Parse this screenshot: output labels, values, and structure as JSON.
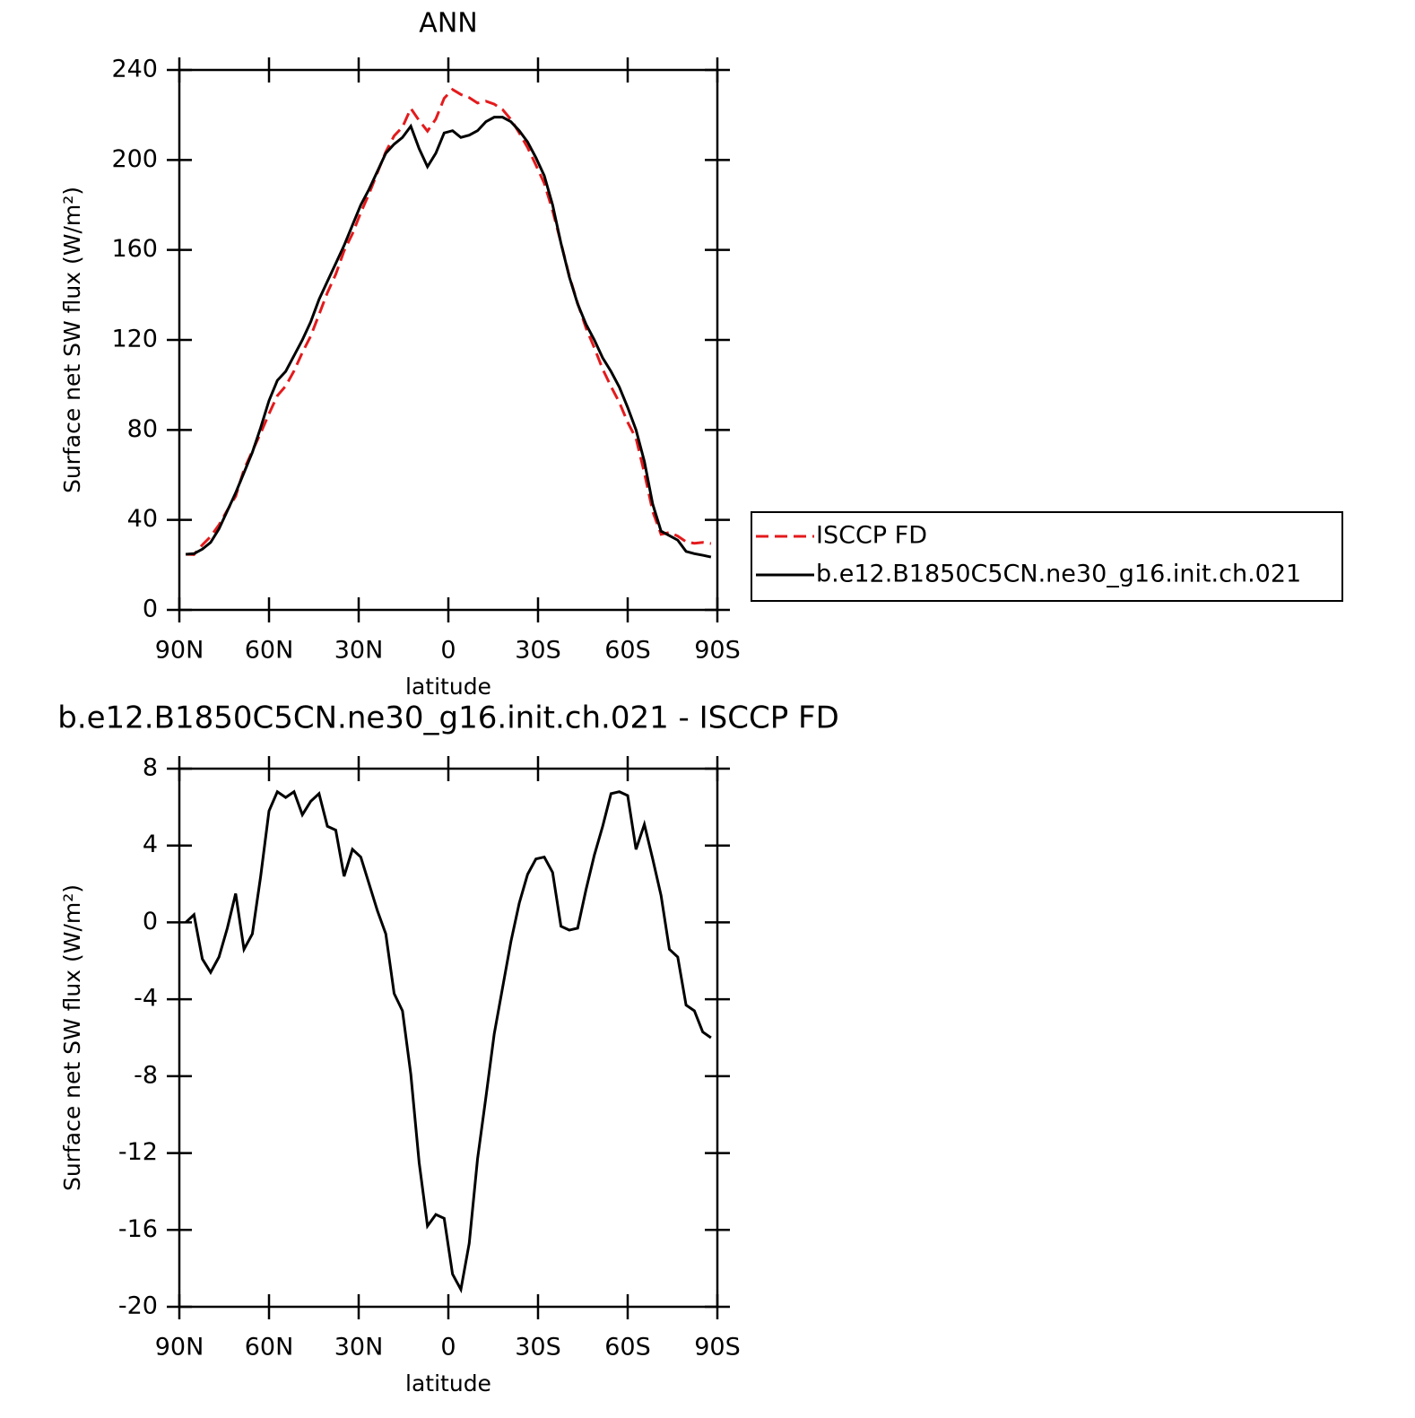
{
  "chart_data": [
    {
      "type": "line",
      "title": "ANN",
      "xlabel": "latitude",
      "ylabel": "Surface net SW flux (W/m²)",
      "x": [
        87.86,
        85.1,
        82.31,
        79.53,
        76.74,
        73.95,
        71.16,
        68.37,
        65.58,
        62.79,
        60,
        57.21,
        54.42,
        51.63,
        48.84,
        46.05,
        43.26,
        40.47,
        37.67,
        34.88,
        32.09,
        29.3,
        26.51,
        23.72,
        20.93,
        18.14,
        15.35,
        12.56,
        9.77,
        6.98,
        4.19,
        1.4,
        -1.4,
        -4.19,
        -6.98,
        -9.77,
        -12.56,
        -15.35,
        -18.14,
        -20.93,
        -23.72,
        -26.51,
        -29.3,
        -32.09,
        -34.88,
        -37.67,
        -40.47,
        -43.26,
        -46.05,
        -48.84,
        -51.63,
        -54.42,
        -57.21,
        -60,
        -62.79,
        -65.58,
        -68.37,
        -71.16,
        -73.95,
        -76.74,
        -79.53,
        -82.31,
        -85.1,
        -87.86
      ],
      "series": [
        {
          "name": "ISCCP FD",
          "color": "#e41a1c",
          "style": "dashed",
          "values": [
            24.7,
            24.6,
            28.9,
            32.6,
            37.8,
            44.3,
            50.5,
            62.4,
            70.6,
            78.6,
            87.2,
            95.2,
            99.5,
            106.2,
            114.4,
            121.7,
            131.3,
            141,
            149.2,
            159.6,
            167.2,
            176.6,
            185,
            194.4,
            203.6,
            210.7,
            214.6,
            222.9,
            217.5,
            212.8,
            218.2,
            227.4,
            231.3,
            229.1,
            227.7,
            225.3,
            226.1,
            224.8,
            222.4,
            218,
            212,
            205.5,
            197.7,
            189.6,
            177.4,
            163.2,
            148.4,
            136.3,
            125.3,
            116.5,
            107,
            99.3,
            92.2,
            83.4,
            76.2,
            60.9,
            43.7,
            33.6,
            34.4,
            32.8,
            30.3,
            29.6,
            30,
            29.5
          ]
        },
        {
          "name": "b.e12.B1850C5CN.ne30_g16.init.ch.021",
          "color": "#000000",
          "style": "solid",
          "values": [
            24.7,
            25,
            27,
            30,
            36,
            44,
            52,
            61,
            70,
            81,
            93,
            102,
            106,
            113,
            120,
            128,
            138,
            146,
            154,
            162,
            171,
            180,
            187,
            195,
            203,
            207,
            210,
            215,
            205,
            197,
            203,
            212,
            213,
            210,
            211,
            213,
            217,
            219,
            219,
            217,
            213,
            208,
            201,
            193,
            180,
            163,
            148,
            136,
            127,
            120,
            112,
            106,
            99,
            90,
            80,
            66,
            47,
            35,
            33,
            31,
            26,
            25,
            24.3,
            23.5
          ]
        }
      ],
      "xlim": [
        90,
        -90
      ],
      "xticks": [
        {
          "value": 90,
          "label": "90N"
        },
        {
          "value": 60,
          "label": "60N"
        },
        {
          "value": 30,
          "label": "30N"
        },
        0,
        {
          "value": -30,
          "label": "30S"
        },
        {
          "value": -60,
          "label": "60S"
        },
        {
          "value": -90,
          "label": "90S"
        }
      ],
      "ylim": [
        0,
        240
      ],
      "yticks": [
        0,
        40,
        80,
        120,
        160,
        200,
        240
      ],
      "legend": "right"
    },
    {
      "type": "line",
      "title": "b.e12.B1850C5CN.ne30_g16.init.ch.021 - ISCCP FD",
      "xlabel": "latitude",
      "ylabel": "Surface net SW flux (W/m²)",
      "x": [
        87.86,
        85.1,
        82.31,
        79.53,
        76.74,
        73.95,
        71.16,
        68.37,
        65.58,
        62.79,
        60,
        57.21,
        54.42,
        51.63,
        48.84,
        46.05,
        43.26,
        40.47,
        37.67,
        34.88,
        32.09,
        29.3,
        26.51,
        23.72,
        20.93,
        18.14,
        15.35,
        12.56,
        9.77,
        6.98,
        4.19,
        1.4,
        -1.4,
        -4.19,
        -6.98,
        -9.77,
        -12.56,
        -15.35,
        -18.14,
        -20.93,
        -23.72,
        -26.51,
        -29.3,
        -32.09,
        -34.88,
        -37.67,
        -40.47,
        -43.26,
        -46.05,
        -48.84,
        -51.63,
        -54.42,
        -57.21,
        -60,
        -62.79,
        -65.58,
        -68.37,
        -71.16,
        -73.95,
        -76.74,
        -79.53,
        -82.31,
        -85.1,
        -87.86
      ],
      "values": [
        0,
        0.4,
        -1.9,
        -2.6,
        -1.8,
        -0.3,
        1.5,
        -1.4,
        -0.6,
        2.4,
        5.8,
        6.8,
        6.5,
        6.8,
        5.6,
        6.3,
        6.7,
        5,
        4.8,
        2.4,
        3.8,
        3.4,
        2,
        0.6,
        -0.6,
        -3.7,
        -4.6,
        -7.9,
        -12.5,
        -15.8,
        -15.2,
        -15.4,
        -18.3,
        -19.1,
        -16.7,
        -12.3,
        -9.1,
        -5.8,
        -3.4,
        -1,
        1,
        2.5,
        3.3,
        3.4,
        2.6,
        -0.2,
        -0.4,
        -0.3,
        1.7,
        3.5,
        5,
        6.7,
        6.8,
        6.6,
        3.8,
        5.1,
        3.3,
        1.4,
        -1.4,
        -1.8,
        -4.3,
        -4.6,
        -5.7,
        -6
      ],
      "color": "#000000",
      "xlim": [
        90,
        -90
      ],
      "xticks": [
        {
          "value": 90,
          "label": "90N"
        },
        {
          "value": 60,
          "label": "60N"
        },
        {
          "value": 30,
          "label": "30N"
        },
        0,
        {
          "value": -30,
          "label": "30S"
        },
        {
          "value": -60,
          "label": "60S"
        },
        {
          "value": -90,
          "label": "90S"
        }
      ],
      "ylim": [
        -20,
        8
      ],
      "yticks": [
        -20,
        -16,
        -12,
        -8,
        -4,
        0,
        4,
        8
      ]
    }
  ]
}
